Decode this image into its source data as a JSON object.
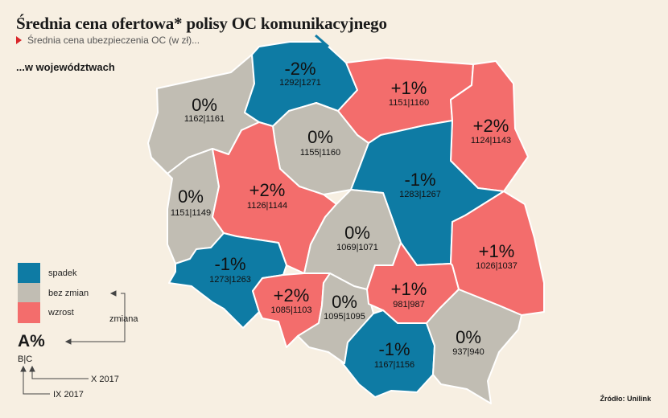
{
  "title": "Średnia cena ofertowa* polisy OC komunikacyjnego",
  "subtitle": "Średnia cena ubezpieczenia OC (w zł)...",
  "section_label": "...w województwach",
  "colors": {
    "spadek": "#0e7ba4",
    "bez_zmian": "#c1bdb3",
    "wzrost": "#f36d6c",
    "background": "#f7efe2"
  },
  "legend": [
    {
      "label": "spadek",
      "color": "#0e7ba4"
    },
    {
      "label": "bez zmian",
      "color": "#c1bdb3"
    },
    {
      "label": "wzrost",
      "color": "#f36d6c"
    }
  ],
  "key": {
    "pct": "A%",
    "values": "B|C",
    "zmiana": "zmiana",
    "x_label": "X 2017",
    "ix_label": "IX 2017"
  },
  "source": "Źródło: Unilink",
  "regions": [
    {
      "name": "zachodniopomorskie",
      "change": "0%",
      "values": "1162|1161",
      "trend": "bez_zmian"
    },
    {
      "name": "pomorskie",
      "change": "-2%",
      "values": "1292|1271",
      "trend": "spadek"
    },
    {
      "name": "warmińsko-mazurskie",
      "change": "+1%",
      "values": "1151|1160",
      "trend": "wzrost"
    },
    {
      "name": "podlaskie",
      "change": "+2%",
      "values": "1124|1143",
      "trend": "wzrost"
    },
    {
      "name": "kujawsko-pomorskie",
      "change": "0%",
      "values": "1155|1160",
      "trend": "bez_zmian"
    },
    {
      "name": "lubuskie",
      "change": "0%",
      "values": "1151|1149",
      "trend": "bez_zmian"
    },
    {
      "name": "wielkopolskie",
      "change": "+2%",
      "values": "1126|1144",
      "trend": "wzrost"
    },
    {
      "name": "mazowieckie",
      "change": "-1%",
      "values": "1283|1267",
      "trend": "spadek"
    },
    {
      "name": "łódzkie",
      "change": "0%",
      "values": "1069|1071",
      "trend": "bez_zmian"
    },
    {
      "name": "lubelskie",
      "change": "+1%",
      "values": "1026|1037",
      "trend": "wzrost"
    },
    {
      "name": "dolnośląskie",
      "change": "-1%",
      "values": "1273|1263",
      "trend": "spadek"
    },
    {
      "name": "opolskie",
      "change": "+2%",
      "values": "1085|1103",
      "trend": "wzrost"
    },
    {
      "name": "śląskie",
      "change": "0%",
      "values": "1095|1095",
      "trend": "bez_zmian"
    },
    {
      "name": "świętokrzyskie",
      "change": "+1%",
      "values": "981|987",
      "trend": "wzrost"
    },
    {
      "name": "małopolskie",
      "change": "-1%",
      "values": "1167|1156",
      "trend": "spadek"
    },
    {
      "name": "podkarpackie",
      "change": "0%",
      "values": "937|940",
      "trend": "bez_zmian"
    }
  ]
}
